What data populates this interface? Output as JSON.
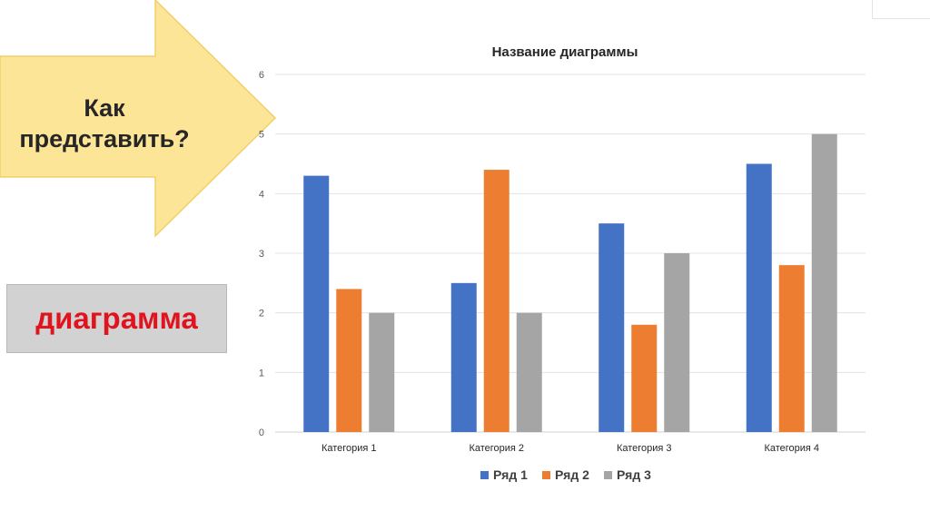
{
  "slide": {
    "question": "Как\nпредставить?",
    "answer": "диаграмма",
    "arrow_color": "#fde597",
    "arrow_border": "#f0d06a",
    "answer_color": "#e0141e",
    "box_color": "#d2d2d2"
  },
  "chart_data": {
    "type": "bar",
    "title": "Название диаграммы",
    "categories": [
      "Категория 1",
      "Категория 2",
      "Категория 3",
      "Категория 4"
    ],
    "series": [
      {
        "name": "Ряд 1",
        "color": "#4472c4",
        "values": [
          4.3,
          2.5,
          3.5,
          4.5
        ]
      },
      {
        "name": "Ряд 2",
        "color": "#ed7d31",
        "values": [
          2.4,
          4.4,
          1.8,
          2.8
        ]
      },
      {
        "name": "Ряд 3",
        "color": "#a5a5a5",
        "values": [
          2,
          2,
          3,
          5
        ]
      }
    ],
    "ylim": [
      0,
      6
    ],
    "yticks": [
      "0",
      "1",
      "2",
      "3",
      "4",
      "5",
      "6"
    ],
    "grid": true,
    "legend": "bottom"
  }
}
